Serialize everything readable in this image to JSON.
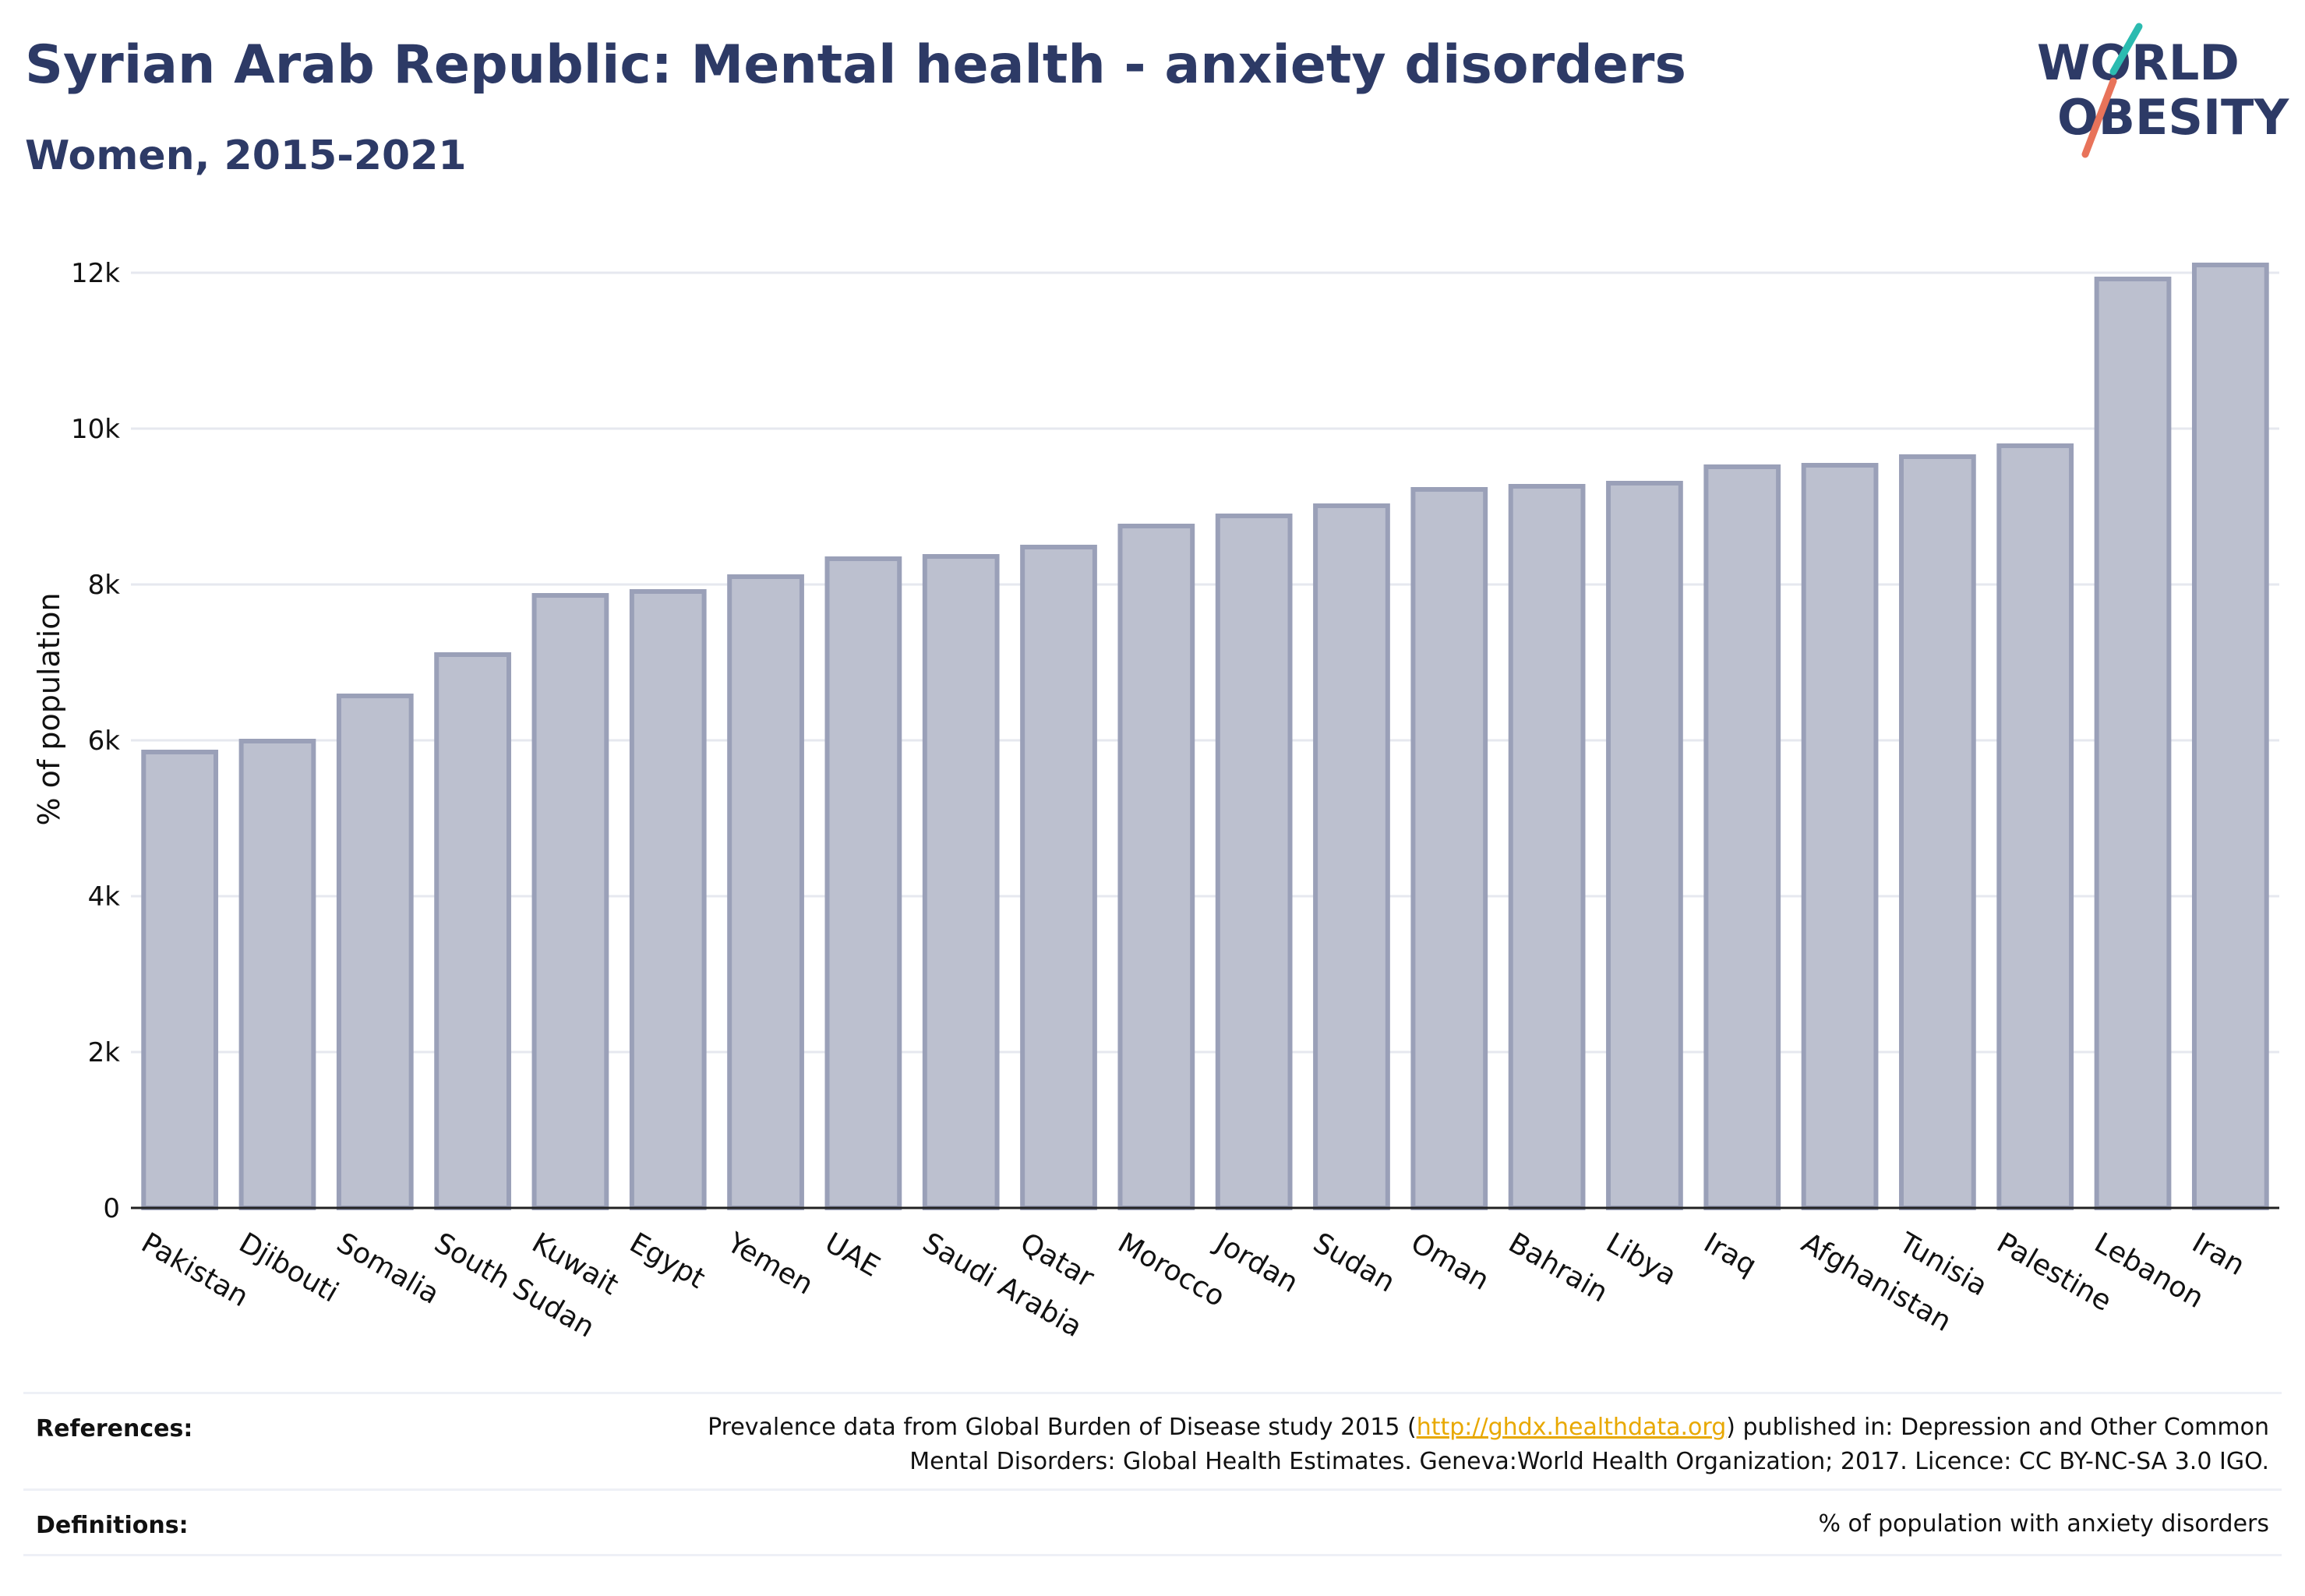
{
  "title": "Syrian Arab Republic: Mental health - anxiety disorders",
  "subtitle": "Women, 2015-2021",
  "logo": {
    "line1": "WORLD",
    "line2": "OBESITY",
    "accent_teal": "#2bbbb0",
    "accent_red": "#e8735a"
  },
  "colors": {
    "bar_fill": "#bcc0cf",
    "bar_stroke": "#9aa0b8",
    "text_dark": "#2d3a66",
    "grid": "#e6e8ef",
    "link": "#e8a800"
  },
  "chart_data": {
    "type": "bar",
    "categories": [
      "Pakistan",
      "Djibouti",
      "Somalia",
      "South Sudan",
      "Kuwait",
      "Egypt",
      "Yemen",
      "UAE",
      "Saudi Arabia",
      "Qatar",
      "Morocco",
      "Jordan",
      "Sudan",
      "Oman",
      "Bahrain",
      "Libya",
      "Iraq",
      "Afghanistan",
      "Tunisia",
      "Palestine",
      "Lebanon",
      "Iran"
    ],
    "values": [
      5850,
      5990,
      6570,
      7100,
      7860,
      7910,
      8100,
      8330,
      8360,
      8480,
      8750,
      8880,
      9010,
      9220,
      9260,
      9300,
      9510,
      9530,
      9640,
      9780,
      11920,
      12100
    ],
    "ylabel": "% of population",
    "xlabel": "",
    "ylim": [
      0,
      12500
    ],
    "yticks": [
      0,
      2000,
      4000,
      6000,
      8000,
      10000,
      12000
    ],
    "ytick_labels": [
      "0",
      "2k",
      "4k",
      "6k",
      "8k",
      "10k",
      "12k"
    ],
    "grid": true
  },
  "footer": {
    "references_label": "References:",
    "references_before": "Prevalence data from Global Burden of Disease study 2015 (",
    "references_link": "http://ghdx.healthdata.org",
    "references_after_line1": ") published in: Depression and Other Common",
    "references_line2": "Mental Disorders: Global Health Estimates. Geneva:World Health Organization; 2017. Licence: CC BY-NC-SA 3.0 IGO.",
    "definitions_label": "Definitions:",
    "definitions_text": "% of population with anxiety disorders"
  }
}
